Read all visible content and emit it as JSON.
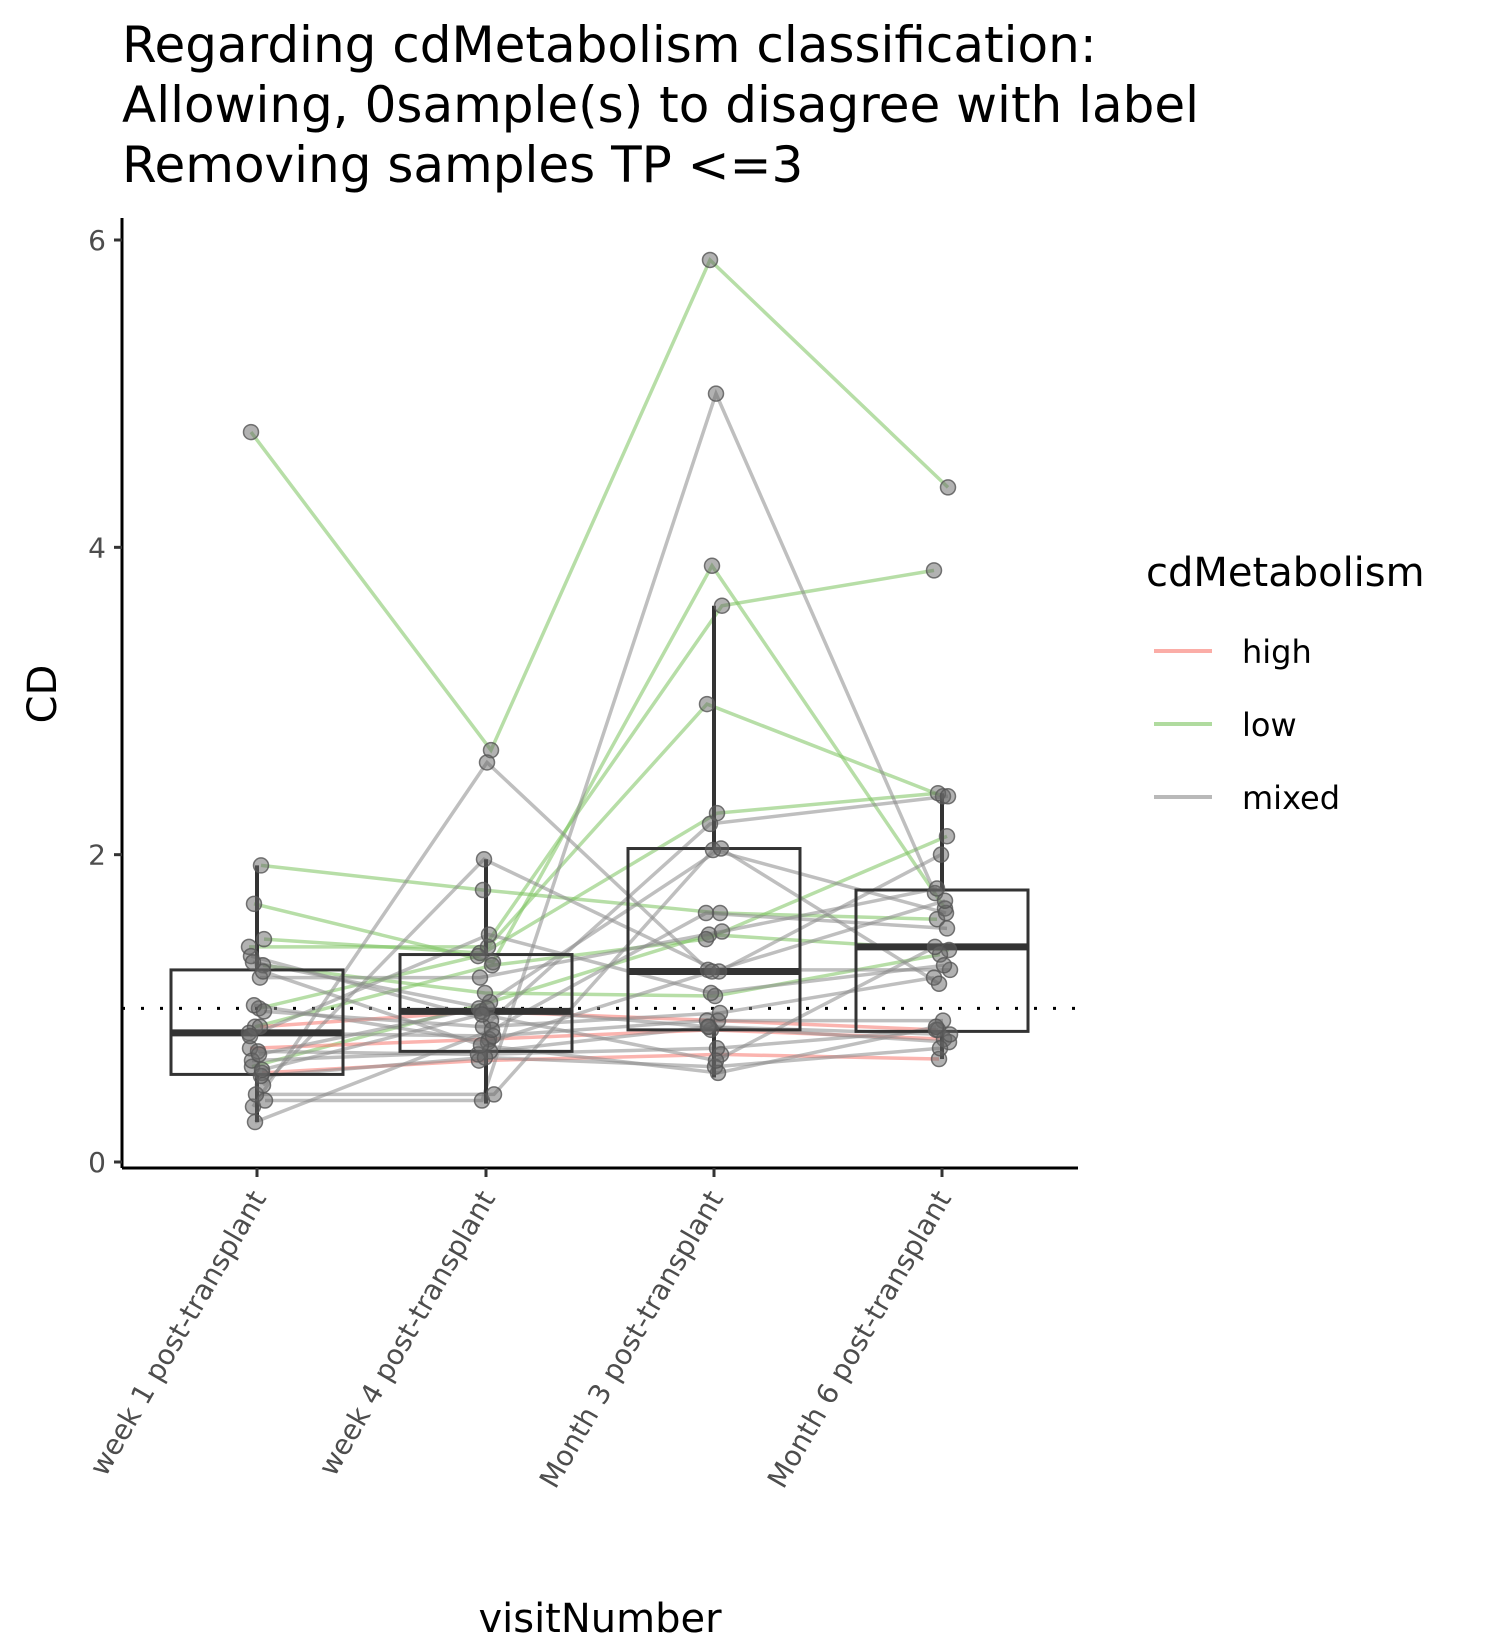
{
  "chart_data": {
    "type": "box-with-paired-lines",
    "title_lines": [
      "Regarding cdMetabolism classification:",
      "Allowing, 0sample(s) to disagree with label",
      "Removing samples TP <=3"
    ],
    "xlabel": "visitNumber",
    "ylabel": "CD",
    "categories": [
      "week 1 post-transplant",
      "week 4 post-transplant",
      "Month 3 post-transplant",
      "Month 6 post-transplant"
    ],
    "ylim": [
      0,
      6
    ],
    "yticks": [
      0,
      2,
      4,
      6
    ],
    "reference_line": 1,
    "grid": false,
    "legend": {
      "title": "cdMetabolism",
      "position": "right",
      "entries": [
        {
          "label": "high",
          "color": "#f8766d"
        },
        {
          "label": "low",
          "color": "#7cc35f"
        },
        {
          "label": "mixed",
          "color": "#8a8a8a"
        }
      ]
    },
    "boxes": [
      {
        "q1": 0.57,
        "median": 0.84,
        "q3": 1.25,
        "whisker_low": 0.26,
        "whisker_high": 1.93
      },
      {
        "q1": 0.72,
        "median": 0.98,
        "q3": 1.35,
        "whisker_low": 0.38,
        "whisker_high": 1.97
      },
      {
        "q1": 0.86,
        "median": 1.24,
        "q3": 2.04,
        "whisker_low": 0.55,
        "whisker_high": 3.62
      },
      {
        "q1": 0.85,
        "median": 1.4,
        "q3": 1.77,
        "whisker_low": 0.67,
        "whisker_high": 2.4
      }
    ],
    "series": [
      {
        "group": "low",
        "values": [
          4.75,
          2.68,
          5.87,
          4.39
        ]
      },
      {
        "group": "low",
        "values": [
          1.93,
          1.77,
          1.62,
          1.58
        ]
      },
      {
        "group": "low",
        "values": [
          1.68,
          1.3,
          3.88,
          1.65
        ]
      },
      {
        "group": "low",
        "values": [
          1.45,
          1.36,
          3.62,
          3.85
        ]
      },
      {
        "group": "low",
        "values": [
          1.4,
          1.4,
          2.98,
          2.38
        ]
      },
      {
        "group": "low",
        "values": [
          1.0,
          1.34,
          2.27,
          2.4
        ]
      },
      {
        "group": "low",
        "values": [
          0.62,
          1.04,
          1.48,
          1.38
        ]
      },
      {
        "group": "low",
        "values": [
          1.28,
          1.1,
          1.08,
          1.35
        ]
      },
      {
        "group": "low",
        "values": [
          0.88,
          1.28,
          1.45,
          2.12
        ]
      },
      {
        "group": "high",
        "values": [
          0.88,
          0.98,
          0.92,
          0.86
        ]
      },
      {
        "group": "high",
        "values": [
          0.74,
          0.8,
          0.86,
          0.8
        ]
      },
      {
        "group": "high",
        "values": [
          0.58,
          0.66,
          0.7,
          0.67
        ]
      },
      {
        "group": "mixed",
        "values": [
          0.36,
          2.6,
          1.25,
          1.25
        ]
      },
      {
        "group": "mixed",
        "values": [
          0.4,
          0.4,
          5.0,
          1.75
        ]
      },
      {
        "group": "mixed",
        "values": [
          0.44,
          0.44,
          2.03,
          1.62
        ]
      },
      {
        "group": "mixed",
        "values": [
          0.5,
          1.97,
          1.24,
          2.0
        ]
      },
      {
        "group": "mixed",
        "values": [
          1.34,
          0.92,
          2.2,
          2.38
        ]
      },
      {
        "group": "mixed",
        "values": [
          1.2,
          1.2,
          1.5,
          1.78
        ]
      },
      {
        "group": "mixed",
        "values": [
          1.02,
          0.78,
          1.24,
          1.7
        ]
      },
      {
        "group": "mixed",
        "values": [
          0.98,
          0.88,
          0.97,
          1.2
        ]
      },
      {
        "group": "mixed",
        "values": [
          0.84,
          0.82,
          0.92,
          0.92
        ]
      },
      {
        "group": "mixed",
        "values": [
          0.72,
          0.7,
          0.74,
          0.86
        ]
      },
      {
        "group": "mixed",
        "values": [
          0.66,
          0.72,
          0.88,
          0.78
        ]
      },
      {
        "group": "mixed",
        "values": [
          0.56,
          0.68,
          0.62,
          0.74
        ]
      },
      {
        "group": "mixed",
        "values": [
          0.26,
          0.86,
          1.62,
          1.52
        ]
      },
      {
        "group": "mixed",
        "values": [
          1.24,
          0.76,
          0.58,
          0.88
        ]
      },
      {
        "group": "mixed",
        "values": [
          0.82,
          1.48,
          1.1,
          1.28
        ]
      },
      {
        "group": "mixed",
        "values": [
          0.7,
          1.0,
          2.04,
          1.16
        ]
      },
      {
        "group": "mixed",
        "values": [
          1.3,
          1.0,
          0.88,
          0.83
        ]
      },
      {
        "group": "mixed",
        "values": [
          0.6,
          0.96,
          0.66,
          1.4
        ]
      }
    ]
  }
}
